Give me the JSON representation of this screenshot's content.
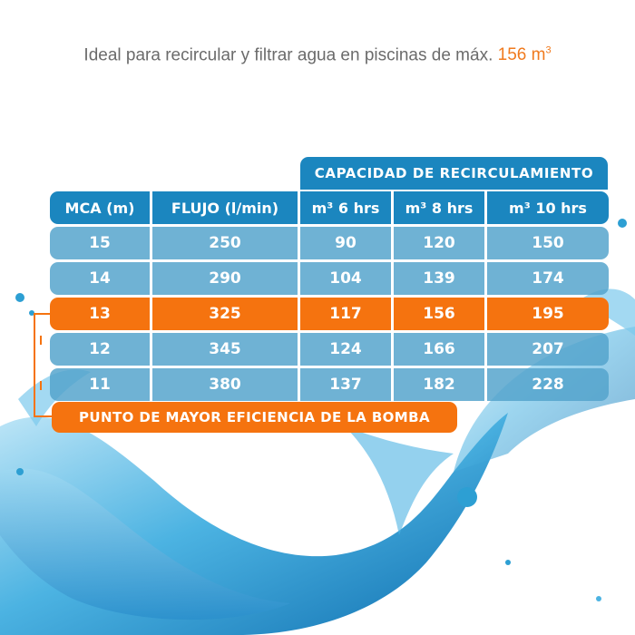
{
  "headline": {
    "text": "Ideal para recircular y filtrar agua en piscinas de máx.",
    "volume": "156 m",
    "volume_sup": "3"
  },
  "table": {
    "group_header": "CAPACIDAD DE RECIRCULAMIENTO",
    "columns": [
      {
        "label": "MCA (m)",
        "sup": ""
      },
      {
        "label": "FLUJO (l/min)",
        "sup": ""
      },
      {
        "label": "6 hrs",
        "sup": "m³"
      },
      {
        "label": "8 hrs",
        "sup": "m³"
      },
      {
        "label": "10 hrs",
        "sup": "m³"
      }
    ],
    "rows": [
      [
        "15",
        "250",
        "90",
        "120",
        "150"
      ],
      [
        "14",
        "290",
        "104",
        "139",
        "174"
      ],
      [
        "13",
        "325",
        "117",
        "156",
        "195"
      ],
      [
        "12",
        "345",
        "124",
        "166",
        "207"
      ],
      [
        "11",
        "380",
        "137",
        "182",
        "228"
      ]
    ],
    "highlight_row": 2
  },
  "efficiency_label": "PUNTO DE MAYOR EFICIENCIA DE LA BOMBA",
  "colors": {
    "accent_orange": "#f5730f",
    "header_blue": "#1b86bf",
    "row_blue": "#54a3cc",
    "water_blue": "#2d9fd3"
  }
}
